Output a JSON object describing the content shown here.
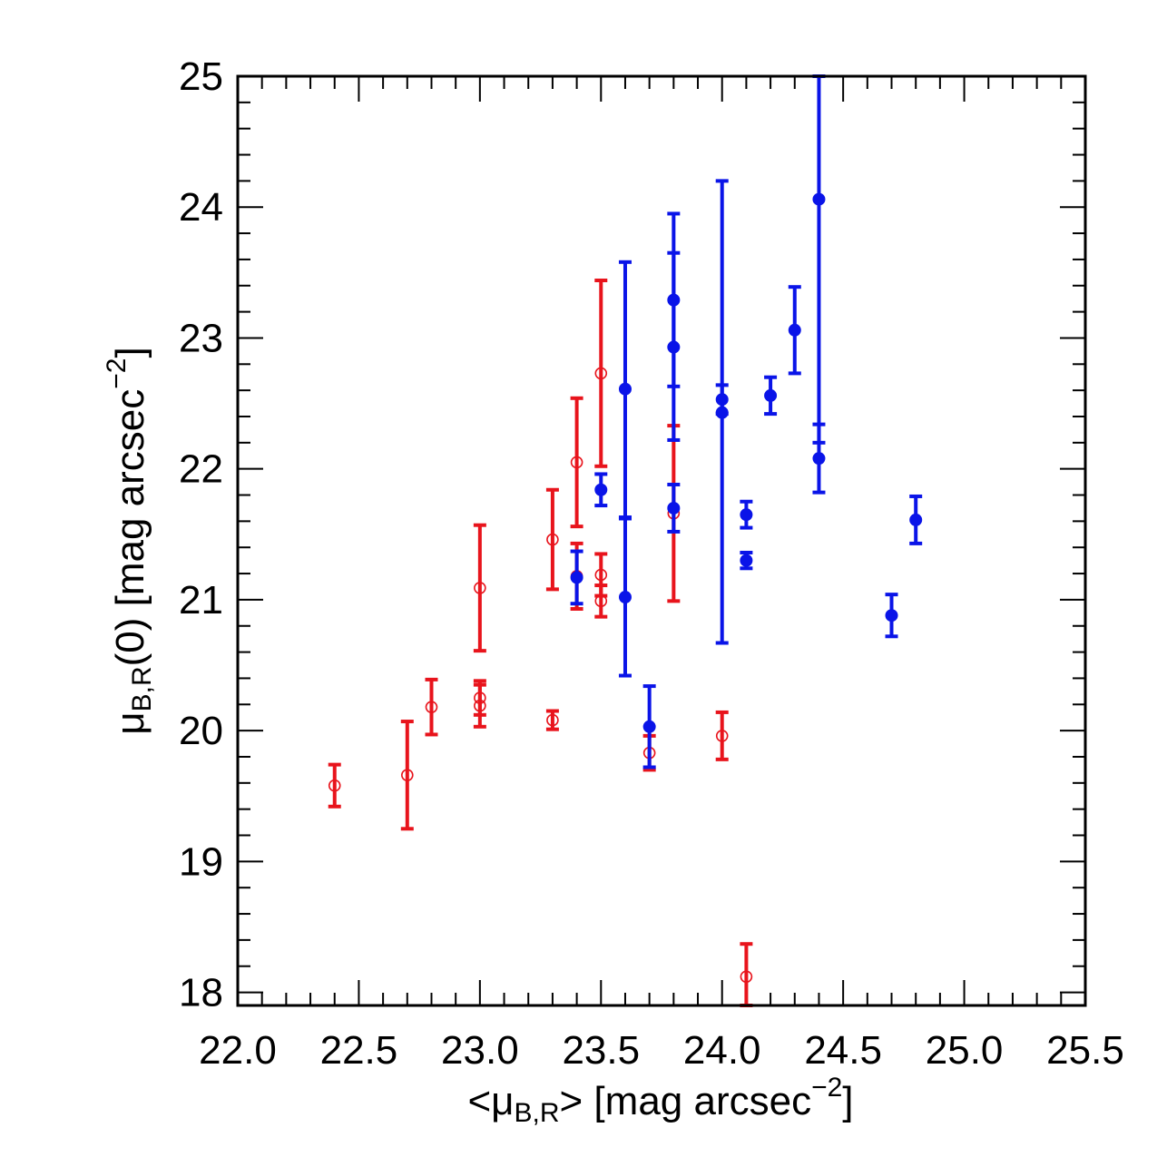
{
  "chart_data": {
    "type": "scatter",
    "xlabel_parts": {
      "pre": "<μ",
      "sub": "B,R",
      "post": "> [mag arcsec",
      "sup": "−2",
      "end": "]"
    },
    "ylabel_parts": {
      "pre": "μ",
      "sub": "B,R",
      "post": "(0) [mag arcsec",
      "sup": "−2",
      "end": "]"
    },
    "xlim": [
      22.0,
      25.5
    ],
    "ylim": [
      17.9,
      25.0
    ],
    "x_ticks": [
      "22.0",
      "22.5",
      "23.0",
      "23.5",
      "24.0",
      "24.5",
      "25.0",
      "25.5"
    ],
    "x_tick_values": [
      22.0,
      22.5,
      23.0,
      23.5,
      24.0,
      24.5,
      25.0,
      25.5
    ],
    "y_ticks": [
      "18",
      "19",
      "20",
      "21",
      "22",
      "23",
      "24",
      "25"
    ],
    "y_tick_values": [
      18,
      19,
      20,
      21,
      22,
      23,
      24,
      25
    ],
    "grid": false,
    "series": [
      {
        "color": "#e8141c",
        "marker": "open-circle",
        "points": [
          {
            "x": 22.4,
            "y": 19.58,
            "lo": 19.42,
            "hi": 19.74
          },
          {
            "x": 22.7,
            "y": 19.66,
            "lo": 19.25,
            "hi": 20.07
          },
          {
            "x": 22.8,
            "y": 20.18,
            "lo": 19.97,
            "hi": 20.39
          },
          {
            "x": 23.0,
            "y": 21.09,
            "lo": 20.61,
            "hi": 21.57
          },
          {
            "x": 23.0,
            "y": 20.25,
            "lo": 20.12,
            "hi": 20.38
          },
          {
            "x": 23.0,
            "y": 20.19,
            "lo": 20.03,
            "hi": 20.35
          },
          {
            "x": 23.3,
            "y": 21.46,
            "lo": 21.08,
            "hi": 21.84
          },
          {
            "x": 23.3,
            "y": 20.08,
            "lo": 20.01,
            "hi": 20.15
          },
          {
            "x": 23.4,
            "y": 22.05,
            "lo": 21.56,
            "hi": 22.54
          },
          {
            "x": 23.4,
            "y": 21.18,
            "lo": 20.93,
            "hi": 21.43
          },
          {
            "x": 23.5,
            "y": 22.73,
            "lo": 22.02,
            "hi": 23.44
          },
          {
            "x": 23.5,
            "y": 21.19,
            "lo": 21.03,
            "hi": 21.35
          },
          {
            "x": 23.5,
            "y": 20.99,
            "lo": 20.87,
            "hi": 21.11
          },
          {
            "x": 23.7,
            "y": 19.83,
            "lo": 19.7,
            "hi": 19.96
          },
          {
            "x": 23.8,
            "y": 21.66,
            "lo": 20.99,
            "hi": 22.33
          },
          {
            "x": 24.0,
            "y": 19.96,
            "lo": 19.78,
            "hi": 20.14
          },
          {
            "x": 24.1,
            "y": 18.12,
            "lo": 17.9,
            "hi": 18.37
          }
        ]
      },
      {
        "color": "#0a14e8",
        "marker": "filled-circle",
        "points": [
          {
            "x": 23.4,
            "y": 21.17,
            "lo": 20.97,
            "hi": 21.37
          },
          {
            "x": 23.5,
            "y": 21.84,
            "lo": 21.72,
            "hi": 21.96
          },
          {
            "x": 23.6,
            "y": 22.61,
            "lo": 21.63,
            "hi": 23.58
          },
          {
            "x": 23.6,
            "y": 21.02,
            "lo": 20.42,
            "hi": 21.62
          },
          {
            "x": 23.7,
            "y": 20.03,
            "lo": 19.72,
            "hi": 20.34
          },
          {
            "x": 23.8,
            "y": 23.29,
            "lo": 22.63,
            "hi": 23.95
          },
          {
            "x": 23.8,
            "y": 22.93,
            "lo": 22.22,
            "hi": 23.65
          },
          {
            "x": 23.8,
            "y": 21.7,
            "lo": 21.52,
            "hi": 21.88
          },
          {
            "x": 24.0,
            "y": 22.53,
            "lo": 22.42,
            "hi": 22.64
          },
          {
            "x": 24.0,
            "y": 22.43,
            "lo": 20.67,
            "hi": 24.2
          },
          {
            "x": 24.1,
            "y": 21.65,
            "lo": 21.55,
            "hi": 21.75
          },
          {
            "x": 24.1,
            "y": 21.3,
            "lo": 21.24,
            "hi": 21.36
          },
          {
            "x": 24.2,
            "y": 22.56,
            "lo": 22.42,
            "hi": 22.7
          },
          {
            "x": 24.3,
            "y": 23.06,
            "lo": 22.73,
            "hi": 23.39
          },
          {
            "x": 24.4,
            "y": 24.06,
            "lo": 22.2,
            "hi": 25.0
          },
          {
            "x": 24.4,
            "y": 22.08,
            "lo": 21.82,
            "hi": 22.34
          },
          {
            "x": 24.7,
            "y": 20.88,
            "lo": 20.72,
            "hi": 21.04
          },
          {
            "x": 24.8,
            "y": 21.61,
            "lo": 21.43,
            "hi": 21.79
          }
        ]
      }
    ]
  }
}
